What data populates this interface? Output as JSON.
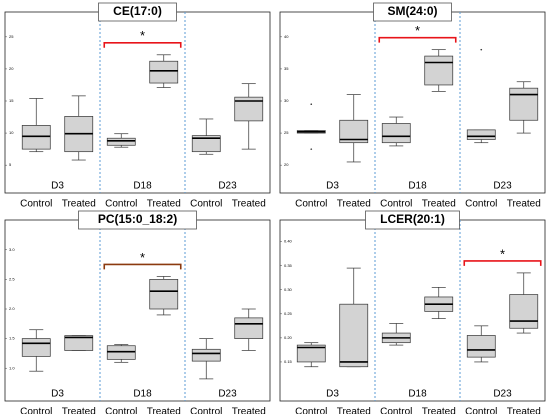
{
  "chart_data": [
    {
      "type": "box",
      "title": "CE(17:0)",
      "groups": [
        "D3",
        "D18",
        "D23"
      ],
      "categories": [
        "Control",
        "Treated",
        "Control",
        "Treated",
        "Control",
        "Treated"
      ],
      "values": [
        {
          "min": 7.1,
          "q1": 7.5,
          "median": 9.5,
          "q3": 11.2,
          "max": 15.4
        },
        {
          "min": 5.8,
          "q1": 7.1,
          "median": 9.9,
          "q3": 12.6,
          "max": 15.8
        },
        {
          "min": 7.8,
          "q1": 8.1,
          "median": 8.8,
          "q3": 9.2,
          "max": 9.9
        },
        {
          "min": 17.1,
          "q1": 17.8,
          "median": 19.7,
          "q3": 21.2,
          "max": 22.2
        },
        {
          "min": 6.7,
          "q1": 7.1,
          "median": 9.2,
          "q3": 9.6,
          "max": 12.2
        },
        {
          "min": 7.5,
          "q1": 11.9,
          "median": 15.0,
          "q3": 15.6,
          "max": 17.7
        }
      ],
      "ylim": [
        3,
        27
      ],
      "yticks": [
        5,
        10,
        15,
        20,
        25
      ],
      "significant_group": 1,
      "annotation": "*",
      "box_color": "#d3d3d3",
      "bracket_color": "#e8141a",
      "annotation_color": "#e8141a",
      "separator_color": "#5b9bd5"
    },
    {
      "type": "box",
      "title": "SM(24:0)",
      "groups": [
        "D3",
        "D18",
        "D23"
      ],
      "categories": [
        "Control",
        "Treated",
        "Control",
        "Treated",
        "Control",
        "Treated"
      ],
      "values": [
        {
          "min": 25.0,
          "q1": 25.0,
          "median": 25.2,
          "q3": 25.4,
          "max": 25.4,
          "outliers": [
            29.5,
            22.5
          ]
        },
        {
          "min": 20.5,
          "q1": 23.5,
          "median": 24.0,
          "q3": 27.0,
          "max": 31.0
        },
        {
          "min": 23.0,
          "q1": 23.5,
          "median": 24.5,
          "q3": 26.5,
          "max": 27.5
        },
        {
          "min": 31.5,
          "q1": 32.5,
          "median": 36.0,
          "q3": 37.0,
          "max": 38.0
        },
        {
          "min": 23.5,
          "q1": 24.0,
          "median": 24.5,
          "q3": 25.5,
          "max": 25.5,
          "outliers": [
            38.0
          ]
        },
        {
          "min": 25.0,
          "q1": 27.0,
          "median": 31.0,
          "q3": 32.0,
          "max": 33.0
        }
      ],
      "ylim": [
        18,
        42
      ],
      "yticks": [
        20,
        25,
        30,
        35,
        40
      ],
      "significant_group": 1,
      "annotation": "*",
      "box_color": "#d3d3d3",
      "bracket_color": "#e8141a",
      "annotation_color": "#e8141a",
      "separator_color": "#5b9bd5"
    },
    {
      "type": "box",
      "title": "PC(15:0_18:2)",
      "groups": [
        "D3",
        "D18",
        "D23"
      ],
      "categories": [
        "Control",
        "Treated",
        "Control",
        "Treated",
        "Control",
        "Treated"
      ],
      "values": [
        {
          "min": 0.95,
          "q1": 1.2,
          "median": 1.42,
          "q3": 1.5,
          "max": 1.65
        },
        {
          "min": 1.3,
          "q1": 1.3,
          "median": 1.52,
          "q3": 1.55,
          "max": 1.55
        },
        {
          "min": 1.1,
          "q1": 1.15,
          "median": 1.28,
          "q3": 1.38,
          "max": 1.4
        },
        {
          "min": 1.9,
          "q1": 2.0,
          "median": 2.3,
          "q3": 2.5,
          "max": 2.55
        },
        {
          "min": 0.82,
          "q1": 1.12,
          "median": 1.25,
          "q3": 1.32,
          "max": 1.5
        },
        {
          "min": 1.3,
          "q1": 1.5,
          "median": 1.75,
          "q3": 1.85,
          "max": 2.0
        }
      ],
      "ylim": [
        0.7,
        3.3
      ],
      "yticks": [
        {
          "value": 1,
          "label": "1.0"
        },
        1.5,
        {
          "value": 2,
          "label": "2.0"
        },
        2.5,
        {
          "value": 3,
          "label": "3.0"
        }
      ],
      "significant_group": 1,
      "annotation": "*",
      "box_color": "#d3d3d3",
      "bracket_color": "#8b3a0f",
      "annotation_color": "#c0392b",
      "separator_color": "#5b9bd5"
    },
    {
      "type": "box",
      "title": "LCER(20:1)",
      "groups": [
        "D3",
        "D18",
        "D23"
      ],
      "categories": [
        "Control",
        "Treated",
        "Control",
        "Treated",
        "Control",
        "Treated"
      ],
      "values": [
        {
          "min": 0.14,
          "q1": 0.15,
          "median": 0.18,
          "q3": 0.185,
          "max": 0.19
        },
        {
          "min": 0.14,
          "q1": 0.14,
          "median": 0.15,
          "q3": 0.27,
          "max": 0.345
        },
        {
          "min": 0.185,
          "q1": 0.19,
          "median": 0.2,
          "q3": 0.21,
          "max": 0.23
        },
        {
          "min": 0.24,
          "q1": 0.255,
          "median": 0.27,
          "q3": 0.285,
          "max": 0.305
        },
        {
          "min": 0.15,
          "q1": 0.16,
          "median": 0.175,
          "q3": 0.205,
          "max": 0.225
        },
        {
          "min": 0.21,
          "q1": 0.22,
          "median": 0.235,
          "q3": 0.29,
          "max": 0.335
        }
      ],
      "ylim": [
        0.1,
        0.42
      ],
      "yticks": [
        0.15,
        {
          "value": 0.2,
          "label": "0.20"
        },
        0.25,
        {
          "value": 0.3,
          "label": "0.30"
        },
        0.35,
        {
          "value": 0.4,
          "label": "0.40"
        }
      ],
      "significant_group": 2,
      "annotation": "*",
      "box_color": "#d3d3d3",
      "bracket_color": "#e8141a",
      "annotation_color": "#e07b00",
      "separator_color": "#5b9bd5"
    }
  ]
}
